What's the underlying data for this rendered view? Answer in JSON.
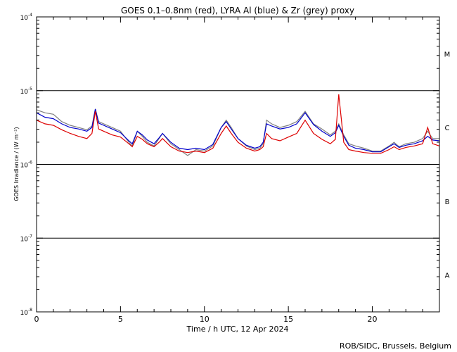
{
  "chart_data": {
    "type": "line",
    "title": "GOES 0.1–0.8nm (red), LYRA Al (blue) & Zr (grey) proxy",
    "xlabel": "Time / h UTC, 12 Apr 2024",
    "ylabel": "GOES Irradiance / (W m⁻²)",
    "credit": "ROB/SIDC, Brussels, Belgium",
    "xlim": [
      0,
      24
    ],
    "ylim_log10": [
      -8,
      -4
    ],
    "x_ticks": [
      0,
      5,
      10,
      15,
      20
    ],
    "y_ticks": [
      {
        "exp": -4,
        "label": "10",
        "sup": "-4"
      },
      {
        "exp": -5,
        "label": "10",
        "sup": "-5"
      },
      {
        "exp": -6,
        "label": "10",
        "sup": "-6"
      },
      {
        "exp": -7,
        "label": "10",
        "sup": "-7"
      },
      {
        "exp": -8,
        "label": "10",
        "sup": "-8"
      }
    ],
    "flare_class_lines": [
      -5,
      -6,
      -7
    ],
    "flare_classes": [
      {
        "label": "M",
        "exp": -4.5
      },
      {
        "label": "C",
        "exp": -5.5
      },
      {
        "label": "B",
        "exp": -6.5
      },
      {
        "label": "A",
        "exp": -7.5
      }
    ],
    "series": [
      {
        "name": "LYRA Zr proxy",
        "color": "#808080",
        "x": [
          0,
          0.5,
          1,
          1.5,
          2,
          2.5,
          3,
          3.3,
          3.5,
          3.7,
          4,
          4.5,
          5,
          5.5,
          5.7,
          6,
          6.3,
          6.6,
          7,
          7.3,
          7.5,
          8,
          8.5,
          9,
          9.5,
          10,
          10.5,
          11,
          11.3,
          11.6,
          12,
          12.5,
          13,
          13.3,
          13.5,
          13.7,
          14,
          14.5,
          15,
          15.5,
          16,
          16.5,
          17,
          17.5,
          17.8,
          18,
          18.3,
          18.6,
          19,
          19.5,
          20,
          20.5,
          21,
          21.3,
          21.6,
          22,
          22.5,
          23,
          23.3,
          23.6,
          24
        ],
        "log10_values": [
          -5.26,
          -5.3,
          -5.32,
          -5.42,
          -5.47,
          -5.5,
          -5.53,
          -5.48,
          -5.25,
          -5.42,
          -5.45,
          -5.5,
          -5.55,
          -5.7,
          -5.75,
          -5.55,
          -5.62,
          -5.7,
          -5.75,
          -5.65,
          -5.58,
          -5.72,
          -5.8,
          -5.88,
          -5.8,
          -5.82,
          -5.75,
          -5.5,
          -5.4,
          -5.5,
          -5.65,
          -5.75,
          -5.8,
          -5.78,
          -5.72,
          -5.4,
          -5.45,
          -5.5,
          -5.47,
          -5.42,
          -5.28,
          -5.45,
          -5.52,
          -5.6,
          -5.55,
          -5.45,
          -5.6,
          -5.72,
          -5.75,
          -5.78,
          -5.82,
          -5.82,
          -5.75,
          -5.7,
          -5.76,
          -5.72,
          -5.7,
          -5.65,
          -5.55,
          -5.65,
          -5.65
        ]
      },
      {
        "name": "LYRA Al proxy",
        "color": "#0000cc",
        "x": [
          0,
          0.5,
          1,
          1.5,
          2,
          2.5,
          3,
          3.3,
          3.5,
          3.7,
          4,
          4.5,
          5,
          5.5,
          5.7,
          6,
          6.3,
          6.6,
          7,
          7.3,
          7.5,
          8,
          8.5,
          9,
          9.5,
          10,
          10.5,
          11,
          11.3,
          11.6,
          12,
          12.5,
          13,
          13.3,
          13.5,
          13.7,
          14,
          14.5,
          15,
          15.5,
          16,
          16.5,
          17,
          17.5,
          17.8,
          18,
          18.3,
          18.6,
          19,
          19.5,
          20,
          20.5,
          21,
          21.3,
          21.6,
          22,
          22.5,
          23,
          23.3,
          23.6,
          24
        ],
        "log10_values": [
          -5.3,
          -5.36,
          -5.38,
          -5.45,
          -5.5,
          -5.52,
          -5.55,
          -5.5,
          -5.25,
          -5.44,
          -5.47,
          -5.52,
          -5.57,
          -5.68,
          -5.72,
          -5.55,
          -5.6,
          -5.67,
          -5.72,
          -5.64,
          -5.58,
          -5.7,
          -5.78,
          -5.8,
          -5.78,
          -5.8,
          -5.73,
          -5.5,
          -5.42,
          -5.52,
          -5.65,
          -5.74,
          -5.78,
          -5.76,
          -5.7,
          -5.45,
          -5.48,
          -5.52,
          -5.5,
          -5.45,
          -5.3,
          -5.46,
          -5.55,
          -5.62,
          -5.57,
          -5.47,
          -5.62,
          -5.74,
          -5.78,
          -5.8,
          -5.83,
          -5.83,
          -5.76,
          -5.72,
          -5.77,
          -5.74,
          -5.72,
          -5.68,
          -5.62,
          -5.67,
          -5.68
        ]
      },
      {
        "name": "GOES 0.1-0.8nm",
        "color": "#dd0000",
        "x": [
          0,
          0.5,
          1,
          1.5,
          2,
          2.5,
          3,
          3.3,
          3.5,
          3.7,
          4,
          4.5,
          5,
          5.5,
          5.7,
          6,
          6.3,
          6.6,
          7,
          7.3,
          7.5,
          8,
          8.5,
          9,
          9.5,
          10,
          10.5,
          11,
          11.3,
          11.6,
          12,
          12.5,
          13,
          13.3,
          13.5,
          13.7,
          14,
          14.5,
          15,
          15.5,
          16,
          16.5,
          17,
          17.5,
          17.8,
          18,
          18.3,
          18.6,
          19,
          19.5,
          20,
          20.5,
          21,
          21.3,
          21.6,
          22,
          22.5,
          23,
          23.3,
          23.6,
          24
        ],
        "log10_values": [
          -5.4,
          -5.45,
          -5.47,
          -5.53,
          -5.58,
          -5.62,
          -5.65,
          -5.58,
          -5.28,
          -5.52,
          -5.55,
          -5.6,
          -5.63,
          -5.72,
          -5.76,
          -5.62,
          -5.66,
          -5.72,
          -5.76,
          -5.7,
          -5.65,
          -5.76,
          -5.82,
          -5.84,
          -5.82,
          -5.84,
          -5.78,
          -5.58,
          -5.48,
          -5.58,
          -5.7,
          -5.78,
          -5.82,
          -5.8,
          -5.76,
          -5.58,
          -5.65,
          -5.68,
          -5.63,
          -5.58,
          -5.4,
          -5.58,
          -5.66,
          -5.72,
          -5.66,
          -5.05,
          -5.7,
          -5.8,
          -5.82,
          -5.84,
          -5.85,
          -5.85,
          -5.8,
          -5.76,
          -5.8,
          -5.77,
          -5.75,
          -5.72,
          -5.5,
          -5.72,
          -5.75
        ]
      }
    ]
  }
}
